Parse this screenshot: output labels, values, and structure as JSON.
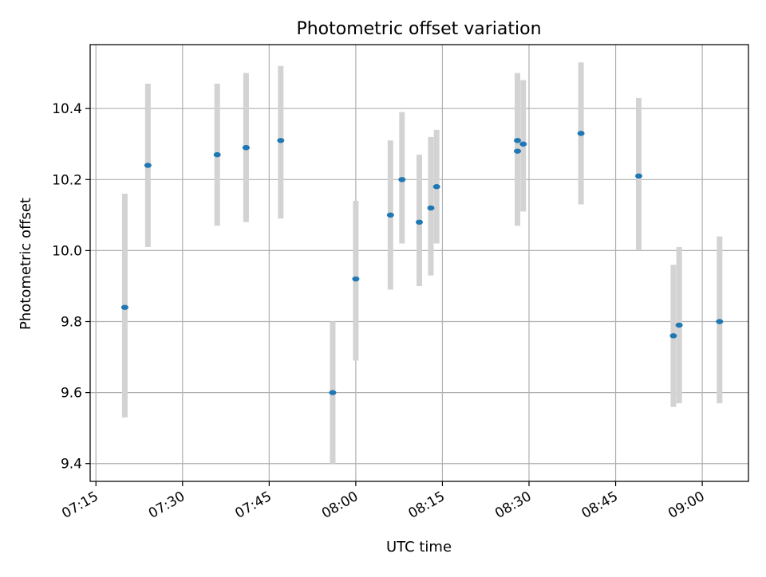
{
  "chart_data": {
    "type": "scatter",
    "title": "Photometric offset variation",
    "xlabel": "UTC time",
    "ylabel": "Photometric offset",
    "x_is_time": true,
    "xlim": [
      "07:14",
      "09:08"
    ],
    "ylim": [
      9.35,
      10.58
    ],
    "x_ticks": [
      "07:15",
      "07:30",
      "07:45",
      "08:00",
      "08:15",
      "08:30",
      "08:45",
      "09:00"
    ],
    "y_ticks": [
      "9.4",
      "9.6",
      "9.8",
      "10.0",
      "10.2",
      "10.4"
    ],
    "grid": true,
    "colors": {
      "point": "#1f77b4",
      "errorbar": "#d3d3d3",
      "grid": "#b0b0b0"
    },
    "points": [
      {
        "t": "07:20",
        "y": 9.84,
        "lo": 9.53,
        "hi": 10.16
      },
      {
        "t": "07:24",
        "y": 10.24,
        "lo": 10.01,
        "hi": 10.47
      },
      {
        "t": "07:36",
        "y": 10.27,
        "lo": 10.07,
        "hi": 10.47
      },
      {
        "t": "07:41",
        "y": 10.29,
        "lo": 10.09,
        "hi": 10.49
      },
      {
        "t": "07:41",
        "y": 10.29,
        "lo": 10.08,
        "hi": 10.5
      },
      {
        "t": "07:47",
        "y": 10.31,
        "lo": 10.09,
        "hi": 10.52
      },
      {
        "t": "07:56",
        "y": 9.6,
        "lo": 9.4,
        "hi": 9.8
      },
      {
        "t": "08:00",
        "y": 9.92,
        "lo": 9.69,
        "hi": 10.14
      },
      {
        "t": "08:06",
        "y": 10.1,
        "lo": 9.89,
        "hi": 10.31
      },
      {
        "t": "08:08",
        "y": 10.2,
        "lo": 10.02,
        "hi": 10.39
      },
      {
        "t": "08:11",
        "y": 10.08,
        "lo": 9.9,
        "hi": 10.27
      },
      {
        "t": "08:13",
        "y": 10.12,
        "lo": 9.93,
        "hi": 10.32
      },
      {
        "t": "08:14",
        "y": 10.18,
        "lo": 10.02,
        "hi": 10.34
      },
      {
        "t": "08:28",
        "y": 10.31,
        "lo": 10.12,
        "hi": 10.5
      },
      {
        "t": "08:28",
        "y": 10.28,
        "lo": 10.07,
        "hi": 10.49
      },
      {
        "t": "08:29",
        "y": 10.3,
        "lo": 10.11,
        "hi": 10.48
      },
      {
        "t": "08:39",
        "y": 10.33,
        "lo": 10.13,
        "hi": 10.53
      },
      {
        "t": "08:49",
        "y": 10.21,
        "lo": 10.0,
        "hi": 10.43
      },
      {
        "t": "08:55",
        "y": 9.76,
        "lo": 9.56,
        "hi": 9.96
      },
      {
        "t": "08:56",
        "y": 9.79,
        "lo": 9.57,
        "hi": 10.01
      },
      {
        "t": "09:03",
        "y": 9.8,
        "lo": 9.57,
        "hi": 10.04
      }
    ]
  }
}
